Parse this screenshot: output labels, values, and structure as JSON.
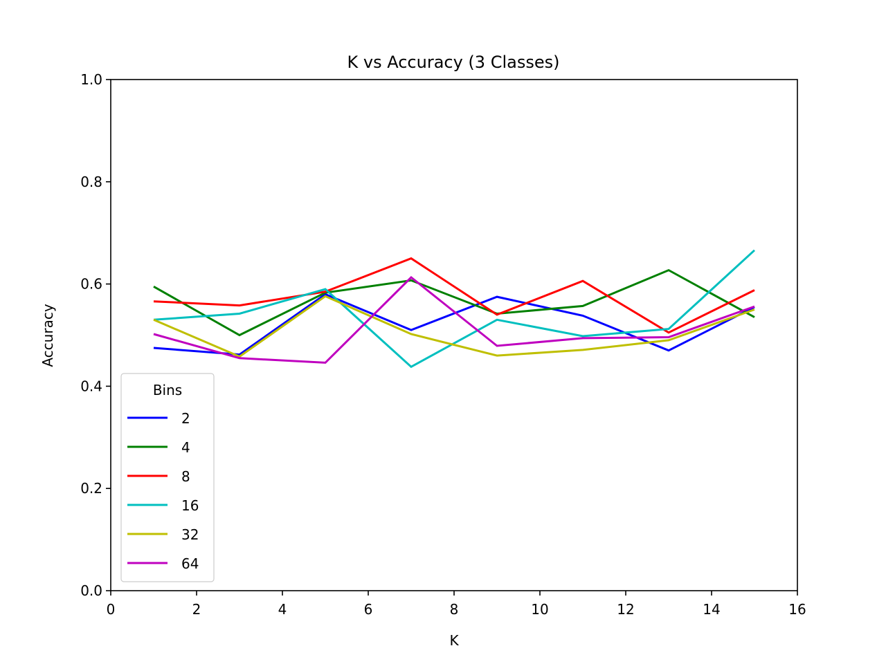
{
  "chart_data": {
    "type": "line",
    "title": "K vs Accuracy (3 Classes)",
    "xlabel": "K",
    "ylabel": "Accuracy",
    "xlim": [
      0,
      16
    ],
    "ylim": [
      0.0,
      1.0
    ],
    "xticks": [
      "0",
      "2",
      "4",
      "6",
      "8",
      "10",
      "12",
      "14",
      "16"
    ],
    "yticks": [
      "0.0",
      "0.2",
      "0.4",
      "0.6",
      "0.8",
      "1.0"
    ],
    "grid": false,
    "legend": {
      "title": "Bins",
      "placement": "lower-left"
    },
    "x": [
      1,
      3,
      5,
      7,
      9,
      11,
      13,
      15
    ],
    "series": [
      {
        "name": "2",
        "color": "#0000ff",
        "values": [
          0.475,
          0.462,
          0.58,
          0.51,
          0.575,
          0.538,
          0.47,
          0.555
        ]
      },
      {
        "name": "4",
        "color": "#008000",
        "values": [
          0.595,
          0.5,
          0.583,
          0.607,
          0.542,
          0.557,
          0.627,
          0.535
        ]
      },
      {
        "name": "8",
        "color": "#ff0000",
        "values": [
          0.566,
          0.558,
          0.585,
          0.65,
          0.54,
          0.606,
          0.505,
          0.588
        ]
      },
      {
        "name": "16",
        "color": "#00bfbf",
        "values": [
          0.53,
          0.542,
          0.59,
          0.438,
          0.53,
          0.498,
          0.512,
          0.666
        ]
      },
      {
        "name": "32",
        "color": "#bfbf00",
        "values": [
          0.53,
          0.458,
          0.576,
          0.502,
          0.46,
          0.471,
          0.49,
          0.55
        ]
      },
      {
        "name": "64",
        "color": "#bf00bf",
        "values": [
          0.502,
          0.455,
          0.446,
          0.613,
          0.479,
          0.494,
          0.496,
          0.556
        ]
      }
    ]
  }
}
